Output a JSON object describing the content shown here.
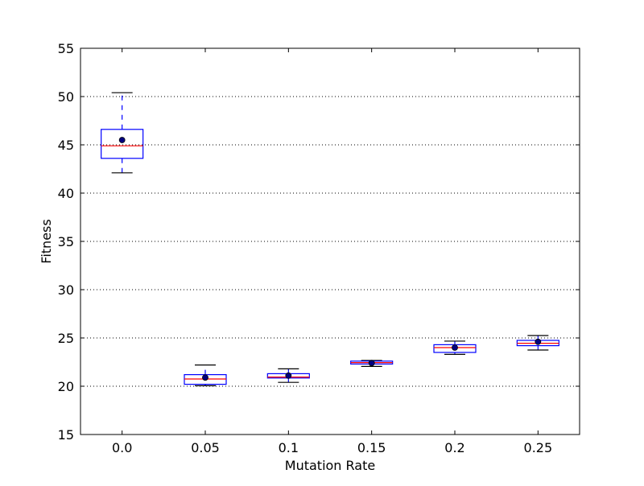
{
  "chart_data": {
    "type": "box",
    "title": "",
    "xlabel": "Mutation Rate",
    "ylabel": "Fitness",
    "ylim": [
      15,
      55
    ],
    "yticks": [
      "15",
      "20",
      "25",
      "30",
      "35",
      "40",
      "45",
      "50",
      "55"
    ],
    "grid": "horizontal dotted",
    "categories": [
      "0.0",
      "0.05",
      "0.1",
      "0.15",
      "0.2",
      "0.25"
    ],
    "boxes": [
      {
        "whisker_low": 42.1,
        "q1": 43.6,
        "median": 44.9,
        "q3": 46.6,
        "whisker_high": 50.4,
        "mean": 45.5
      },
      {
        "whisker_low": 20.05,
        "q1": 20.2,
        "median": 20.75,
        "q3": 21.2,
        "whisker_high": 22.2,
        "mean": 20.9
      },
      {
        "whisker_low": 20.4,
        "q1": 20.85,
        "median": 20.95,
        "q3": 21.3,
        "whisker_high": 21.8,
        "mean": 21.1
      },
      {
        "whisker_low": 22.05,
        "q1": 22.3,
        "median": 22.45,
        "q3": 22.6,
        "whisker_high": 22.67,
        "mean": 22.4
      },
      {
        "whisker_low": 23.3,
        "q1": 23.5,
        "median": 24.0,
        "q3": 24.3,
        "whisker_high": 24.67,
        "mean": 24.0
      },
      {
        "whisker_low": 23.75,
        "q1": 24.2,
        "median": 24.45,
        "q3": 24.75,
        "whisker_high": 25.25,
        "mean": 24.6
      }
    ],
    "colors": {
      "box": "#0000ff",
      "median": "#ff0000",
      "mean": "#000080",
      "cap": "#000000",
      "grid": "#000000"
    }
  }
}
